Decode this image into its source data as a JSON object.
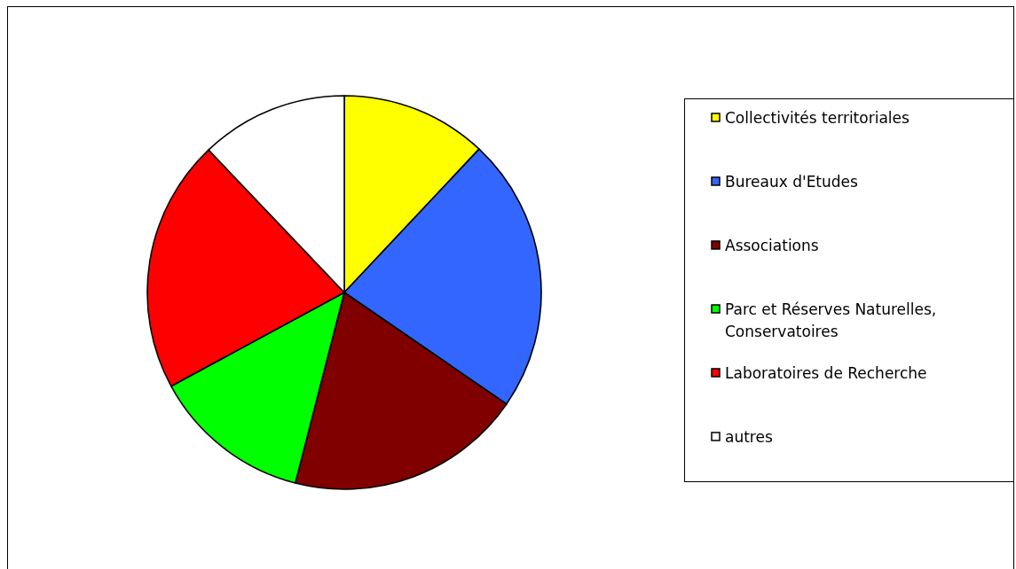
{
  "chart_data": {
    "type": "pie",
    "categories": [
      "Collectivités territoriales",
      "Bureaux d'Etudes",
      "Associations",
      "Parc et Réserves Naturelles, Conservatoires",
      "Laboratoires de Recherche",
      "autres"
    ],
    "values": [
      12,
      22.6,
      19.4,
      13.1,
      20.8,
      12.1
    ],
    "colors": [
      "#ffff00",
      "#3366ff",
      "#800000",
      "#00ff00",
      "#ff0000",
      "#ffffff"
    ],
    "legend": "right"
  }
}
